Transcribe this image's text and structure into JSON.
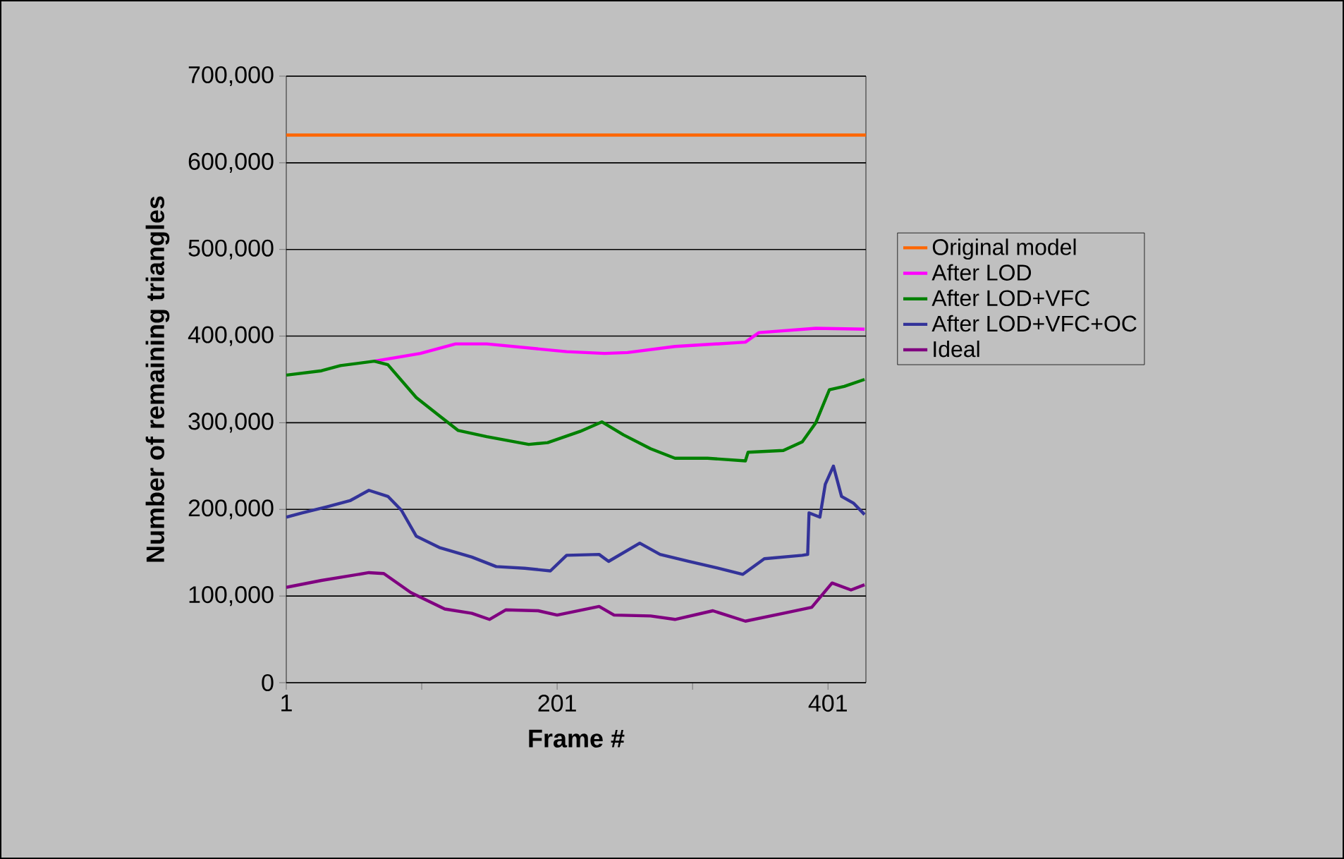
{
  "chart_data": {
    "type": "line",
    "xlabel": "Frame #",
    "ylabel": "Number of remaining triangles",
    "xlim": [
      1,
      429
    ],
    "ylim": [
      0,
      700000
    ],
    "xticks": [
      1,
      {
        "value": 101,
        "label": null
      },
      201,
      {
        "value": 301,
        "label": null
      },
      401
    ],
    "yticks": [
      0,
      {
        "value": 100000,
        "label": "100,000"
      },
      {
        "value": 200000,
        "label": "200,000"
      },
      {
        "value": 300000,
        "label": "300,000"
      },
      {
        "value": 400000,
        "label": "400,000"
      },
      {
        "value": 500000,
        "label": "500,000"
      },
      {
        "value": 600000,
        "label": "600,000"
      },
      {
        "value": 700000,
        "label": "700,000"
      }
    ],
    "grid": "y",
    "legend": "right",
    "marker": "none",
    "line_style": "solid",
    "series": [
      {
        "name": "Original model",
        "color": "#ff6600",
        "x": [
          1,
          429
        ],
        "values": [
          632000,
          632000
        ]
      },
      {
        "name": "After LOD",
        "color": "#ff00ff",
        "x": [
          66,
          100,
          126,
          149,
          208,
          236,
          253,
          288,
          340,
          350,
          392,
          428
        ],
        "values": [
          371000,
          380000,
          391000,
          391000,
          382000,
          380000,
          381000,
          388000,
          393000,
          404000,
          409000,
          408000
        ]
      },
      {
        "name": "After LOD+VFC",
        "color": "#008000",
        "x": [
          1,
          27,
          41,
          66,
          76,
          97,
          114,
          128,
          149,
          180,
          194,
          218,
          234,
          250,
          270,
          288,
          312,
          340,
          342,
          368,
          382,
          392,
          402,
          413,
          428
        ],
        "values": [
          355000,
          360000,
          366000,
          371000,
          367000,
          329000,
          308000,
          291000,
          284000,
          275000,
          277000,
          290000,
          301000,
          286000,
          270000,
          259000,
          259000,
          256000,
          266000,
          268000,
          278000,
          300000,
          338000,
          342000,
          350000
        ]
      },
      {
        "name": "After LOD+VFC+OC",
        "color": "#333399",
        "x": [
          1,
          13,
          31,
          48,
          62,
          76,
          86,
          97,
          114,
          138,
          156,
          177,
          196,
          208,
          232,
          239,
          262,
          277,
          298,
          323,
          338,
          354,
          382,
          386,
          387,
          395,
          399,
          405,
          411,
          420,
          428
        ],
        "values": [
          191000,
          196000,
          203000,
          210000,
          222000,
          215000,
          199000,
          169000,
          156000,
          145000,
          134000,
          132000,
          129000,
          147000,
          148000,
          140000,
          161000,
          148000,
          140000,
          131000,
          125000,
          143000,
          147000,
          148000,
          196000,
          191000,
          229000,
          250000,
          215000,
          207000,
          194000
        ]
      },
      {
        "name": "Ideal",
        "color": "#800080",
        "x": [
          1,
          27,
          62,
          73,
          93,
          118,
          138,
          151,
          163,
          187,
          201,
          232,
          243,
          270,
          288,
          316,
          340,
          368,
          389,
          404,
          418,
          428
        ],
        "values": [
          110000,
          118000,
          127000,
          126000,
          104000,
          85000,
          80000,
          73000,
          84000,
          83000,
          78000,
          88000,
          78000,
          77000,
          73000,
          83000,
          71000,
          80000,
          87000,
          115000,
          107000,
          113000
        ]
      }
    ]
  }
}
